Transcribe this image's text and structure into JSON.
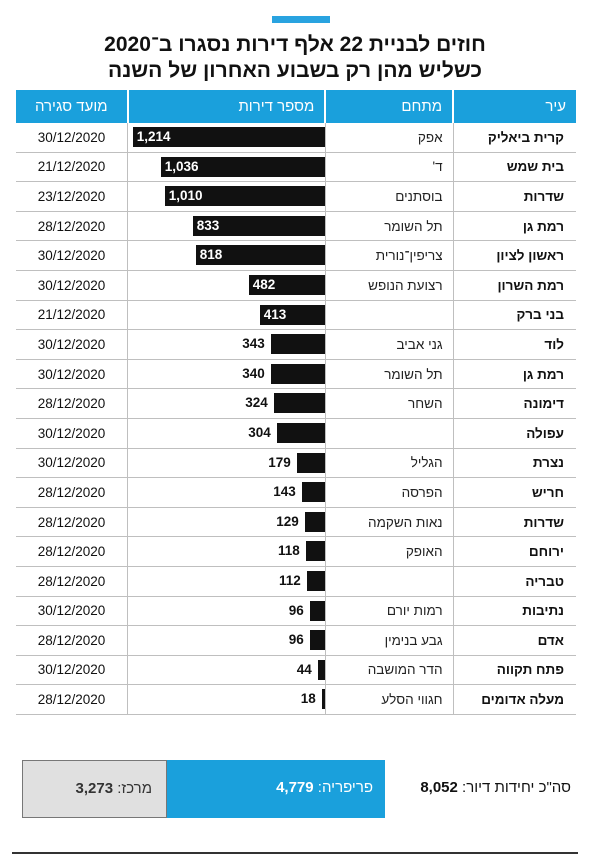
{
  "title": {
    "line1": "חוזים לבניית 22 אלף דירות נסגרו ב־2020",
    "line2": "כשליש מהן רק בשבוע האחרון של השנה"
  },
  "colors": {
    "accent": "#29a3e0",
    "header": "#1aa0dc",
    "bar": "#111111",
    "center_box": "#e0e0e0"
  },
  "chart_data": {
    "type": "table",
    "columns": [
      "עיר",
      "מתחם",
      "מספר דירות",
      "מועד סגירה"
    ],
    "value_max": 1214,
    "rows": [
      {
        "city": "קרית ביאליק",
        "complex": "אפק",
        "units": 1214,
        "units_label": "1,214",
        "date": "30/12/2020"
      },
      {
        "city": "בית שמש",
        "complex": "ד'",
        "units": 1036,
        "units_label": "1,036",
        "date": "21/12/2020"
      },
      {
        "city": "שדרות",
        "complex": "בוסתנים",
        "units": 1010,
        "units_label": "1,010",
        "date": "23/12/2020"
      },
      {
        "city": "רמת גן",
        "complex": "תל השומר",
        "units": 833,
        "units_label": "833",
        "date": "28/12/2020"
      },
      {
        "city": "ראשון לציון",
        "complex": "צריפין־נורית",
        "units": 818,
        "units_label": "818",
        "date": "30/12/2020"
      },
      {
        "city": "רמת השרון",
        "complex": "רצועת הנופש",
        "units": 482,
        "units_label": "482",
        "date": "30/12/2020"
      },
      {
        "city": "בני ברק",
        "complex": "",
        "units": 413,
        "units_label": "413",
        "date": "21/12/2020"
      },
      {
        "city": "לוד",
        "complex": "גני אביב",
        "units": 343,
        "units_label": "343",
        "date": "30/12/2020"
      },
      {
        "city": "רמת גן",
        "complex": "תל השומר",
        "units": 340,
        "units_label": "340",
        "date": "30/12/2020"
      },
      {
        "city": "דימונה",
        "complex": "השחר",
        "units": 324,
        "units_label": "324",
        "date": "28/12/2020"
      },
      {
        "city": "עפולה",
        "complex": "",
        "units": 304,
        "units_label": "304",
        "date": "30/12/2020"
      },
      {
        "city": "נצרת",
        "complex": "הגליל",
        "units": 179,
        "units_label": "179",
        "date": "30/12/2020"
      },
      {
        "city": "חריש",
        "complex": "הפרסה",
        "units": 143,
        "units_label": "143",
        "date": "28/12/2020"
      },
      {
        "city": "שדרות",
        "complex": "נאות השקמה",
        "units": 129,
        "units_label": "129",
        "date": "28/12/2020"
      },
      {
        "city": "ירוחם",
        "complex": "האופק",
        "units": 118,
        "units_label": "118",
        "date": "28/12/2020"
      },
      {
        "city": "טבריה",
        "complex": "",
        "units": 112,
        "units_label": "112",
        "date": "28/12/2020"
      },
      {
        "city": "נתיבות",
        "complex": "רמות יורם",
        "units": 96,
        "units_label": "96",
        "date": "30/12/2020"
      },
      {
        "city": "אדם",
        "complex": "גבע בנימין",
        "units": 96,
        "units_label": "96",
        "date": "28/12/2020"
      },
      {
        "city": "פתח תקווה",
        "complex": "הדר המושבה",
        "units": 44,
        "units_label": "44",
        "date": "30/12/2020"
      },
      {
        "city": "מעלה אדומים",
        "complex": "חגווי הסלע",
        "units": 18,
        "units_label": "18",
        "date": "28/12/2020"
      }
    ]
  },
  "summary": {
    "total_label": "סה\"כ יחידות דיור:",
    "total_value": "8,052",
    "periphery_label": "פריפריה:",
    "periphery_value": "4,779",
    "center_label": "מרכז:",
    "center_value": "3,273"
  }
}
